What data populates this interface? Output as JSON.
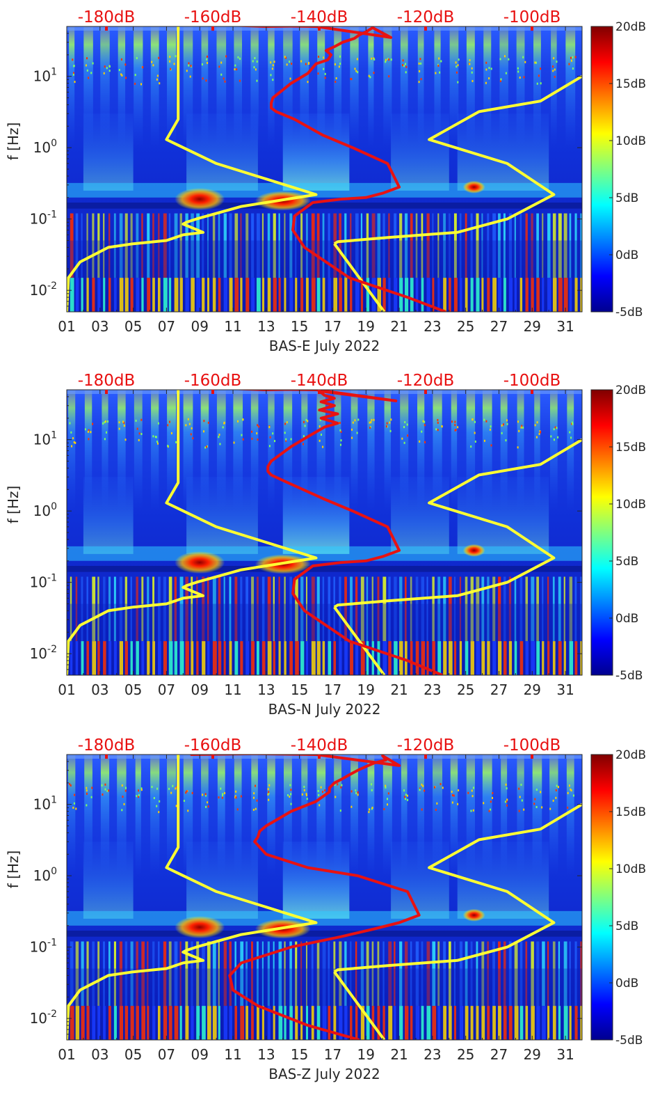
{
  "chart_data": [
    {
      "type": "heatmap",
      "title": "",
      "xlabel": "BAS-E July 2022",
      "ylabel": "f [Hz]",
      "x_tick_labels": [
        "01",
        "03",
        "05",
        "07",
        "09",
        "11",
        "13",
        "15",
        "17",
        "19",
        "21",
        "23",
        "25",
        "27",
        "29",
        "31"
      ],
      "xlim": [
        1,
        32
      ],
      "y_scale": "log",
      "ylim": [
        0.005,
        50
      ],
      "y_ticks": [
        {
          "value": 0.01,
          "base": "10",
          "exp": "-2"
        },
        {
          "value": 0.1,
          "base": "10",
          "exp": "-1"
        },
        {
          "value": 1,
          "base": "10",
          "exp": "0"
        },
        {
          "value": 10,
          "base": "10",
          "exp": "1"
        }
      ],
      "colorbar": {
        "range": [
          -5,
          20
        ],
        "tick_labels": [
          "20dB",
          "15dB",
          "10dB",
          "5dB",
          "0dB",
          "-5dB"
        ]
      },
      "top_axis_labels": [
        "-180dB",
        "-160dB",
        "-140dB",
        "-120dB",
        "-100dB"
      ],
      "colors": {
        "yellow": "#ffff33",
        "red": "#e81212"
      },
      "series": [
        {
          "name": "yellow",
          "x": [
            1,
            1.1,
            1.8,
            3.5,
            5,
            7,
            8,
            9.2,
            8,
            8.2,
            8.8,
            11.5,
            16,
            10,
            7,
            7.7,
            7.7,
            7.7,
            7.7
          ],
          "y": [
            0.005,
            0.015,
            0.025,
            0.04,
            0.045,
            0.05,
            0.06,
            0.065,
            0.085,
            0.09,
            0.1,
            0.15,
            0.22,
            0.6,
            1.3,
            2.5,
            5,
            15,
            50
          ]
        },
        {
          "name": "yellow",
          "x": [
            17.1,
            17.3,
            20.3,
            24.5,
            27.5,
            30.3,
            27.5,
            22.8,
            25.8,
            29.5,
            32
          ],
          "y": [
            0.045,
            0.048,
            0.055,
            0.065,
            0.1,
            0.22,
            0.6,
            1.3,
            3.2,
            4.5,
            10
          ]
        },
        {
          "name": "yellow",
          "x": [
            17.1,
            20.1
          ],
          "y": [
            0.045,
            0.005
          ]
        },
        {
          "name": "red",
          "x": [
            23.8,
            21.5,
            18,
            15.3,
            14.6,
            14.7,
            15.8,
            17.5,
            19,
            20,
            21,
            20.3,
            18.2,
            16.4,
            14.7,
            13.6,
            13.3,
            13.3,
            13.4,
            14.5,
            15.5,
            16,
            16.7,
            16.9,
            16.6,
            17.1,
            17.6,
            18.3,
            18.6,
            19,
            19.4,
            20.5,
            16,
            11,
            13,
            18
          ],
          "y": [
            0.005,
            0.008,
            0.015,
            0.04,
            0.07,
            0.11,
            0.17,
            0.19,
            0.2,
            0.23,
            0.28,
            0.6,
            1,
            1.5,
            2.5,
            3.2,
            3.6,
            4.2,
            5,
            8,
            11,
            15,
            17,
            20,
            23,
            26,
            30,
            34,
            38,
            42,
            48,
            35,
            50,
            52,
            50,
            52
          ]
        }
      ]
    },
    {
      "type": "heatmap",
      "title": "",
      "xlabel": "BAS-N July 2022",
      "ylabel": "f [Hz]",
      "x_tick_labels": [
        "01",
        "03",
        "05",
        "07",
        "09",
        "11",
        "13",
        "15",
        "17",
        "19",
        "21",
        "23",
        "25",
        "27",
        "29",
        "31"
      ],
      "xlim": [
        1,
        32
      ],
      "y_scale": "log",
      "ylim": [
        0.005,
        50
      ],
      "y_ticks": [
        {
          "value": 0.01,
          "base": "10",
          "exp": "-2"
        },
        {
          "value": 0.1,
          "base": "10",
          "exp": "-1"
        },
        {
          "value": 1,
          "base": "10",
          "exp": "0"
        },
        {
          "value": 10,
          "base": "10",
          "exp": "1"
        }
      ],
      "colorbar": {
        "range": [
          -5,
          20
        ],
        "tick_labels": [
          "20dB",
          "15dB",
          "10dB",
          "5dB",
          "0dB",
          "-5dB"
        ]
      },
      "top_axis_labels": [
        "-180dB",
        "-160dB",
        "-140dB",
        "-120dB",
        "-100dB"
      ],
      "colors": {
        "yellow": "#ffff33",
        "red": "#e81212"
      },
      "series": [
        {
          "name": "yellow",
          "x": [
            1,
            1.1,
            1.8,
            3.5,
            5,
            7,
            8,
            9.2,
            8,
            8.2,
            8.8,
            11.5,
            16,
            10,
            7,
            7.7,
            7.7,
            7.7,
            7.7
          ],
          "y": [
            0.005,
            0.015,
            0.025,
            0.04,
            0.045,
            0.05,
            0.06,
            0.065,
            0.085,
            0.09,
            0.1,
            0.15,
            0.22,
            0.6,
            1.3,
            2.5,
            5,
            15,
            50
          ]
        },
        {
          "name": "yellow",
          "x": [
            17.1,
            17.3,
            20.3,
            24.5,
            27.5,
            30.3,
            27.5,
            22.8,
            25.8,
            29.5,
            32
          ],
          "y": [
            0.045,
            0.048,
            0.055,
            0.065,
            0.1,
            0.22,
            0.6,
            1.3,
            3.2,
            4.5,
            10
          ]
        },
        {
          "name": "yellow",
          "x": [
            17.1,
            20.1
          ],
          "y": [
            0.045,
            0.005
          ]
        },
        {
          "name": "red",
          "x": [
            23.6,
            21.5,
            18,
            15.3,
            14.6,
            14.7,
            15.8,
            17.5,
            19,
            20,
            21,
            20.3,
            18.2,
            16.4,
            14.3,
            13.3,
            13.1,
            13.1,
            13.3,
            14.5,
            15.5,
            16.5,
            17.3,
            16.3,
            17.3,
            16.2,
            17.1,
            16.3,
            17.1,
            16.5,
            16.2,
            20.8,
            16,
            11,
            13,
            17
          ],
          "y": [
            0.005,
            0.008,
            0.015,
            0.04,
            0.07,
            0.11,
            0.17,
            0.19,
            0.2,
            0.23,
            0.28,
            0.6,
            1,
            1.5,
            2.5,
            3.2,
            3.6,
            4.2,
            5,
            8,
            11,
            15,
            17,
            20,
            23,
            26,
            30,
            34,
            38,
            42,
            48,
            35,
            50,
            52,
            50,
            52
          ]
        }
      ]
    },
    {
      "type": "heatmap",
      "title": "",
      "xlabel": "BAS-Z July 2022",
      "ylabel": "f [Hz]",
      "x_tick_labels": [
        "01",
        "03",
        "05",
        "07",
        "09",
        "11",
        "13",
        "15",
        "17",
        "19",
        "21",
        "23",
        "25",
        "27",
        "29",
        "31"
      ],
      "xlim": [
        1,
        32
      ],
      "y_scale": "log",
      "ylim": [
        0.005,
        50
      ],
      "y_ticks": [
        {
          "value": 0.01,
          "base": "10",
          "exp": "-2"
        },
        {
          "value": 0.1,
          "base": "10",
          "exp": "-1"
        },
        {
          "value": 1,
          "base": "10",
          "exp": "0"
        },
        {
          "value": 10,
          "base": "10",
          "exp": "1"
        }
      ],
      "colorbar": {
        "range": [
          -5,
          20
        ],
        "tick_labels": [
          "20dB",
          "15dB",
          "10dB",
          "5dB",
          "0dB",
          "-5dB"
        ]
      },
      "top_axis_labels": [
        "-180dB",
        "-160dB",
        "-140dB",
        "-120dB",
        "-100dB"
      ],
      "colors": {
        "yellow": "#ffff33",
        "red": "#e81212"
      },
      "series": [
        {
          "name": "yellow",
          "x": [
            1,
            1.1,
            1.8,
            3.5,
            5,
            7,
            8,
            9.2,
            8,
            8.2,
            8.8,
            11.5,
            16,
            10,
            7,
            7.7,
            7.7,
            7.7,
            7.7
          ],
          "y": [
            0.005,
            0.015,
            0.025,
            0.04,
            0.045,
            0.05,
            0.06,
            0.065,
            0.085,
            0.09,
            0.1,
            0.15,
            0.22,
            0.6,
            1.3,
            2.5,
            5,
            15,
            50
          ]
        },
        {
          "name": "yellow",
          "x": [
            17.1,
            17.3,
            20.3,
            24.5,
            27.5,
            30.3,
            27.5,
            22.8,
            25.8,
            29.5,
            32
          ],
          "y": [
            0.045,
            0.048,
            0.055,
            0.065,
            0.1,
            0.22,
            0.6,
            1.3,
            3.2,
            4.5,
            10
          ]
        },
        {
          "name": "yellow",
          "x": [
            17.1,
            20.1
          ],
          "y": [
            0.045,
            0.005
          ]
        },
        {
          "name": "red",
          "x": [
            18.6,
            15.5,
            12.5,
            11,
            10.8,
            11.5,
            14.5,
            17.5,
            19.5,
            21,
            22.2,
            21.5,
            18.5,
            15.5,
            13,
            12.3,
            12.5,
            12.6,
            13,
            14.5,
            16,
            16.8,
            16.8,
            17.1,
            17.6,
            18,
            18.5,
            19,
            19.5,
            20.2,
            20,
            21,
            16,
            11,
            8.5,
            14
          ],
          "y": [
            0.005,
            0.008,
            0.015,
            0.025,
            0.04,
            0.06,
            0.1,
            0.14,
            0.18,
            0.22,
            0.28,
            0.6,
            1,
            1.3,
            2,
            3,
            3.5,
            4.2,
            5,
            8,
            11,
            15,
            17,
            20,
            23,
            26,
            30,
            34,
            38,
            42,
            48,
            35,
            50,
            52,
            50,
            52
          ]
        }
      ]
    }
  ]
}
